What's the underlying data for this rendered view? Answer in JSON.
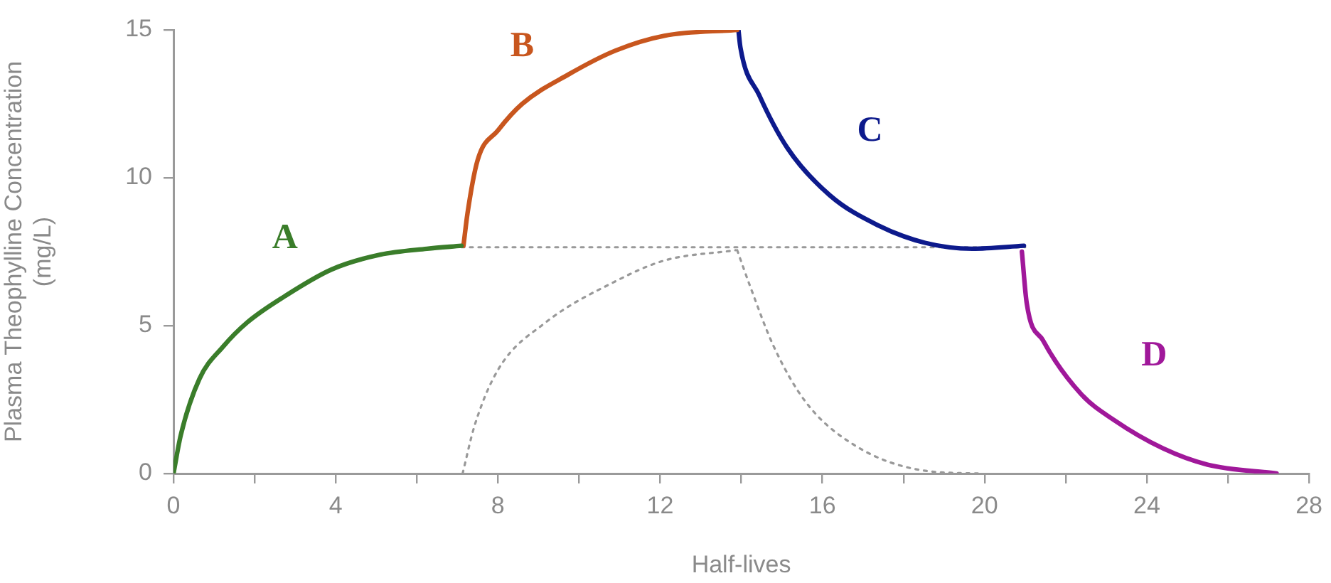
{
  "chart_data": {
    "type": "line",
    "xlabel": "Half-lives",
    "ylabel": "Plasma Theophylline Concentration\n(mg/L)",
    "xlim": [
      0,
      28
    ],
    "ylim": [
      0,
      15
    ],
    "xticks": [
      0,
      {
        "value": 2,
        "label": null
      },
      4,
      {
        "value": 6,
        "label": null
      },
      8,
      {
        "value": 10,
        "label": null
      },
      12,
      {
        "value": 14,
        "label": null
      },
      16,
      {
        "value": 18,
        "label": null
      },
      20,
      {
        "value": 22,
        "label": null
      },
      24,
      {
        "value": 26,
        "label": null
      },
      28
    ],
    "yticks": [
      0,
      5,
      10,
      15
    ],
    "grid": false,
    "legend": false,
    "marker": "none",
    "series": [
      {
        "name": "A",
        "color": "#3a7d2a",
        "line_style": "solid",
        "x": [
          0,
          0.18,
          0.64,
          1.23,
          1.81,
          2.75,
          3.9,
          5.1,
          6.25,
          7.1
        ],
        "values": [
          0,
          1.3,
          3.2,
          4.3,
          5.1,
          6.0,
          6.9,
          7.4,
          7.6,
          7.7
        ]
      },
      {
        "name": "B",
        "color": "#c8561e",
        "line_style": "solid",
        "x": [
          7.15,
          7.25,
          7.5,
          8.0,
          8.6,
          9.75,
          10.9,
          12.1,
          13.9
        ],
        "values": [
          7.7,
          8.8,
          10.6,
          11.6,
          12.5,
          13.5,
          14.3,
          14.8,
          15.0
        ]
      },
      {
        "name": "C",
        "color": "#0d1a8c",
        "line_style": "solid",
        "x": [
          13.93,
          13.98,
          14.44,
          15.14,
          16.19,
          17.36,
          18.53,
          19.7,
          20.97
        ],
        "values": [
          15.0,
          14.4,
          12.8,
          11.0,
          9.4,
          8.4,
          7.8,
          7.6,
          7.7
        ]
      },
      {
        "name": "D",
        "color": "#a0189a",
        "line_style": "solid",
        "x": [
          20.92,
          21.04,
          21.44,
          22.37,
          23.2,
          24.4,
          25.5,
          27.2
        ],
        "values": [
          7.5,
          5.75,
          4.5,
          2.7,
          1.8,
          0.85,
          0.3,
          0
        ]
      },
      {
        "color": "#999999",
        "line_style": "dotted",
        "x": [
          7.1,
          21
        ],
        "values": [
          7.65,
          7.65
        ]
      },
      {
        "color": "#999999",
        "line_style": "dotted",
        "x": [
          7.13,
          7.42,
          8.0,
          9.17,
          10.9,
          12.1,
          13.86
        ],
        "values": [
          0,
          1.6,
          3.5,
          5.1,
          6.5,
          7.2,
          7.55
        ]
      },
      {
        "color": "#999999",
        "line_style": "dotted",
        "x": [
          13.9,
          14.2,
          14.8,
          15.6,
          16.8,
          18.5,
          19.9
        ],
        "values": [
          7.55,
          6.4,
          4.3,
          2.4,
          0.95,
          0.1,
          0
        ]
      }
    ]
  }
}
